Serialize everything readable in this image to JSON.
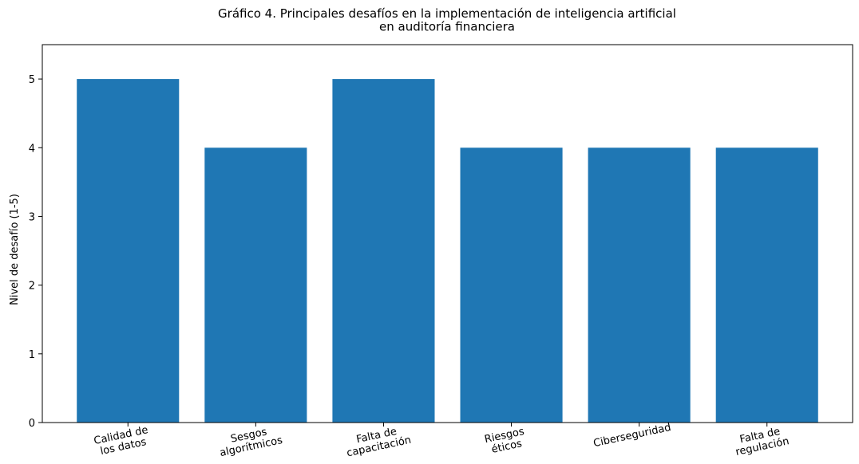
{
  "chart_data": {
    "type": "bar",
    "title": "Gráfico 4. Principales desafíos en la implementación de inteligencia artificial\nen auditoría financiera",
    "y_label": "Nivel de desafío (1-5)",
    "categories": [
      "Calidad de\nlos datos",
      "Sesgos\nalgorítmicos",
      "Falta de\ncapacitación",
      "Riesgos\néticos",
      "Ciberseguridad",
      "Falta de\nregulación"
    ],
    "values": [
      5,
      4,
      5,
      4,
      4,
      4
    ],
    "color": "#1f77b4",
    "ylim": [
      0,
      5.5
    ],
    "yticks": [
      0,
      1,
      2,
      3,
      4,
      5
    ],
    "grid": false
  }
}
